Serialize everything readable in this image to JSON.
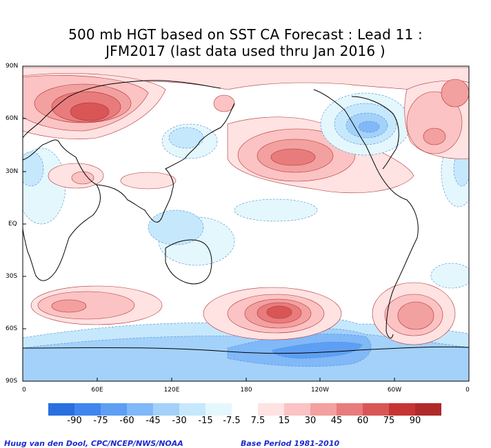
{
  "title_line1": "500 mb HGT based on SST CA Forecast : Lead 11 :",
  "title_line2": "JFM2017 (last data used thru Jan 2016 )",
  "lat_labels": [
    "90N",
    "60N",
    "30N",
    "EQ",
    "30S",
    "60S",
    "90S"
  ],
  "lon_labels": [
    "0",
    "60E",
    "120E",
    "180",
    "120W",
    "60W",
    "0"
  ],
  "legend": {
    "labels": [
      "-90",
      "-75",
      "-60",
      "-45",
      "-30",
      "-15",
      "-7.5",
      "7.5",
      "15",
      "30",
      "45",
      "60",
      "75",
      "90"
    ],
    "colors": [
      "#2a6fe0",
      "#3f86ee",
      "#5e9ff4",
      "#80b8f8",
      "#a3d1fa",
      "#c6e8fc",
      "#e4f7fd",
      "#ffffff",
      "#ffe2e2",
      "#fbc3c3",
      "#f3a0a0",
      "#e87c7c",
      "#d95656",
      "#c73434",
      "#b02a2a"
    ]
  },
  "credit": "Huug van den Dool, CPC/NCEP/NWS/NOAA",
  "base_period": "Base Period 1981-2010",
  "icons": [
    "coastline-outline"
  ]
}
